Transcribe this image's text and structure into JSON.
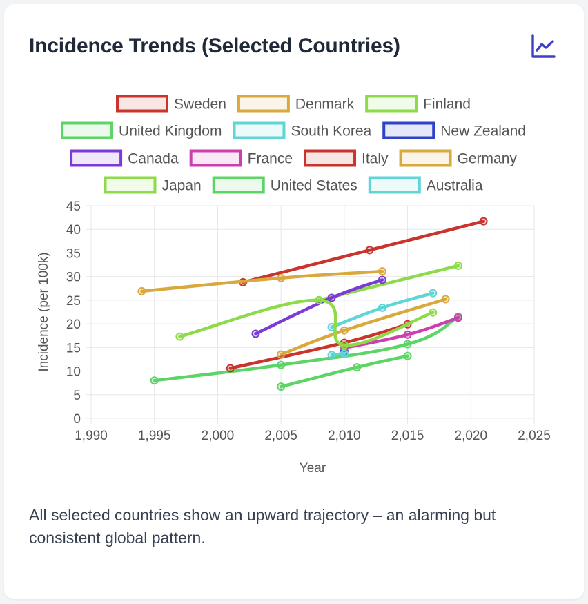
{
  "card": {
    "title": "Incidence Trends (Selected Countries)",
    "icon": "line-chart-icon",
    "caption": "All selected countries show an upward trajectory – an alarming but consistent global pattern."
  },
  "colors": {
    "title": "#1f2937",
    "icon": "#3f3fc9",
    "grid": "#e5e7eb",
    "text": "#555555"
  },
  "chart_data": {
    "type": "line",
    "title": "",
    "xlabel": "Year",
    "ylabel": "Incidence (per 100k)",
    "xlim": [
      1990,
      2025
    ],
    "ylim": [
      0,
      45
    ],
    "x_ticks": [
      "1,990",
      "1,995",
      "2,000",
      "2,005",
      "2,010",
      "2,015",
      "2,020",
      "2,025"
    ],
    "y_ticks": [
      "0",
      "5",
      "10",
      "15",
      "20",
      "25",
      "30",
      "35",
      "40",
      "45"
    ],
    "grid": true,
    "legend": "top",
    "series": [
      {
        "name": "Sweden",
        "color": "#c9342d",
        "points": [
          [
            2002,
            28.8
          ],
          [
            2012,
            35.6
          ],
          [
            2021,
            41.7
          ]
        ]
      },
      {
        "name": "Denmark",
        "color": "#d9a93e",
        "points": [
          [
            1994,
            26.9
          ],
          [
            2005,
            29.7
          ],
          [
            2013,
            31.1
          ]
        ]
      },
      {
        "name": "Finland",
        "color": "#8edb4a",
        "points": [
          [
            2008,
            25.0
          ],
          [
            2019,
            32.3
          ]
        ]
      },
      {
        "name": "United Kingdom",
        "color": "#5cd466",
        "points": [
          [
            1995,
            8.0
          ],
          [
            2005,
            11.3
          ],
          [
            2015,
            15.7
          ],
          [
            2019,
            21.5
          ]
        ]
      },
      {
        "name": "South Korea",
        "color": "#5fd5d8",
        "points": [
          [
            2009,
            19.3
          ],
          [
            2013,
            23.4
          ],
          [
            2017,
            26.5
          ]
        ]
      },
      {
        "name": "New Zealand",
        "color": "#2f43c9",
        "points": [
          [
            2010,
            14.2
          ]
        ]
      },
      {
        "name": "Canada",
        "color": "#7c3ad6",
        "points": [
          [
            2003,
            17.9
          ],
          [
            2009,
            25.5
          ],
          [
            2013,
            29.3
          ]
        ]
      },
      {
        "name": "France",
        "color": "#cc3fb0",
        "points": [
          [
            2010,
            14.9
          ],
          [
            2015,
            17.7
          ],
          [
            2019,
            21.3
          ]
        ]
      },
      {
        "name": "Italy",
        "color": "#c9342d",
        "points": [
          [
            2001,
            10.6
          ],
          [
            2010,
            16.0
          ],
          [
            2015,
            19.9
          ]
        ]
      },
      {
        "name": "Germany",
        "color": "#d9a93e",
        "points": [
          [
            2005,
            13.5
          ],
          [
            2010,
            18.6
          ],
          [
            2018,
            25.2
          ]
        ]
      },
      {
        "name": "Japan",
        "color": "#8edb4a",
        "points": [
          [
            1997,
            17.3
          ],
          [
            2008,
            25.0
          ],
          [
            2010,
            15.5
          ],
          [
            2017,
            22.4
          ]
        ]
      },
      {
        "name": "United States",
        "color": "#5cd466",
        "points": [
          [
            2005,
            6.7
          ],
          [
            2011,
            10.8
          ],
          [
            2015,
            13.2
          ]
        ]
      },
      {
        "name": "Australia",
        "color": "#5fd5d8",
        "points": [
          [
            2009,
            13.4
          ],
          [
            2010,
            13.7
          ]
        ]
      }
    ]
  }
}
